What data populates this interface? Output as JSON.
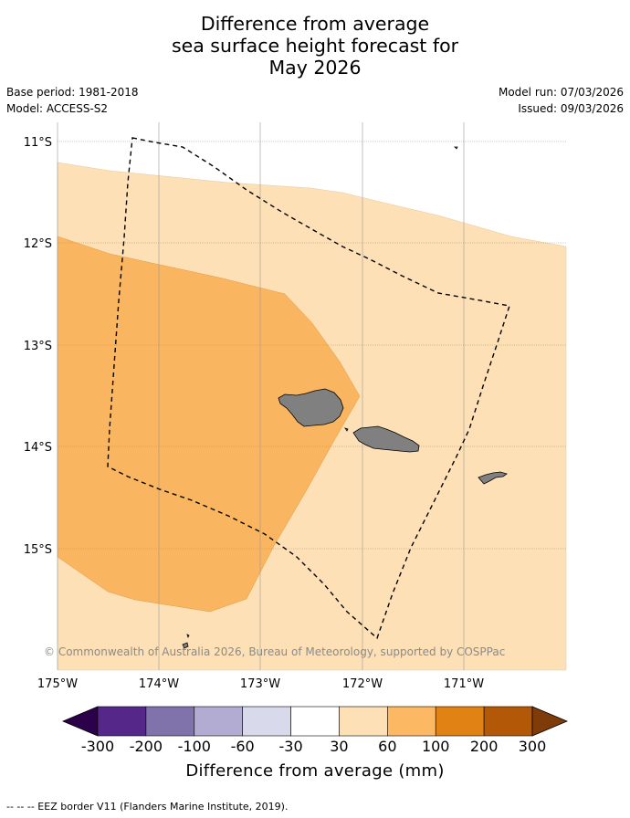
{
  "title": {
    "line1": "Difference from average",
    "line2": "sea surface height forecast for",
    "line3": "May 2026"
  },
  "meta": {
    "base_period": "Base period: 1981-2018",
    "model": "Model: ACCESS-S2",
    "model_run": "Model run: 07/03/2026",
    "issued": "Issued: 09/03/2026"
  },
  "map": {
    "lat_labels": [
      "11°S",
      "12°S",
      "13°S",
      "14°S",
      "15°S"
    ],
    "lon_labels": [
      "175°W",
      "174°W",
      "173°W",
      "172°W",
      "171°W"
    ],
    "copyright": "© Commonwealth of Australia 2026, Bureau of Meteorology, supported by COSPPac",
    "colors": {
      "ocean_30_60": "#fde0b6",
      "ocean_60_100": "#f9b55f",
      "land": "#808080",
      "grid": "#999999"
    }
  },
  "colorbar": {
    "title": "Difference from average (mm)",
    "tick_labels": [
      "-300",
      "-200",
      "-100",
      "-60",
      "-30",
      "30",
      "60",
      "100",
      "200",
      "300"
    ],
    "colors": [
      "#2d004b",
      "#542788",
      "#8073ac",
      "#b2abd2",
      "#d8daeb",
      "#ffffff",
      "#fee0b6",
      "#fdb863",
      "#e08214",
      "#b35806",
      "#7f3b08"
    ]
  },
  "eez_note": "--  --  -- EEZ border V11 (Flanders Marine Institute, 2019)."
}
